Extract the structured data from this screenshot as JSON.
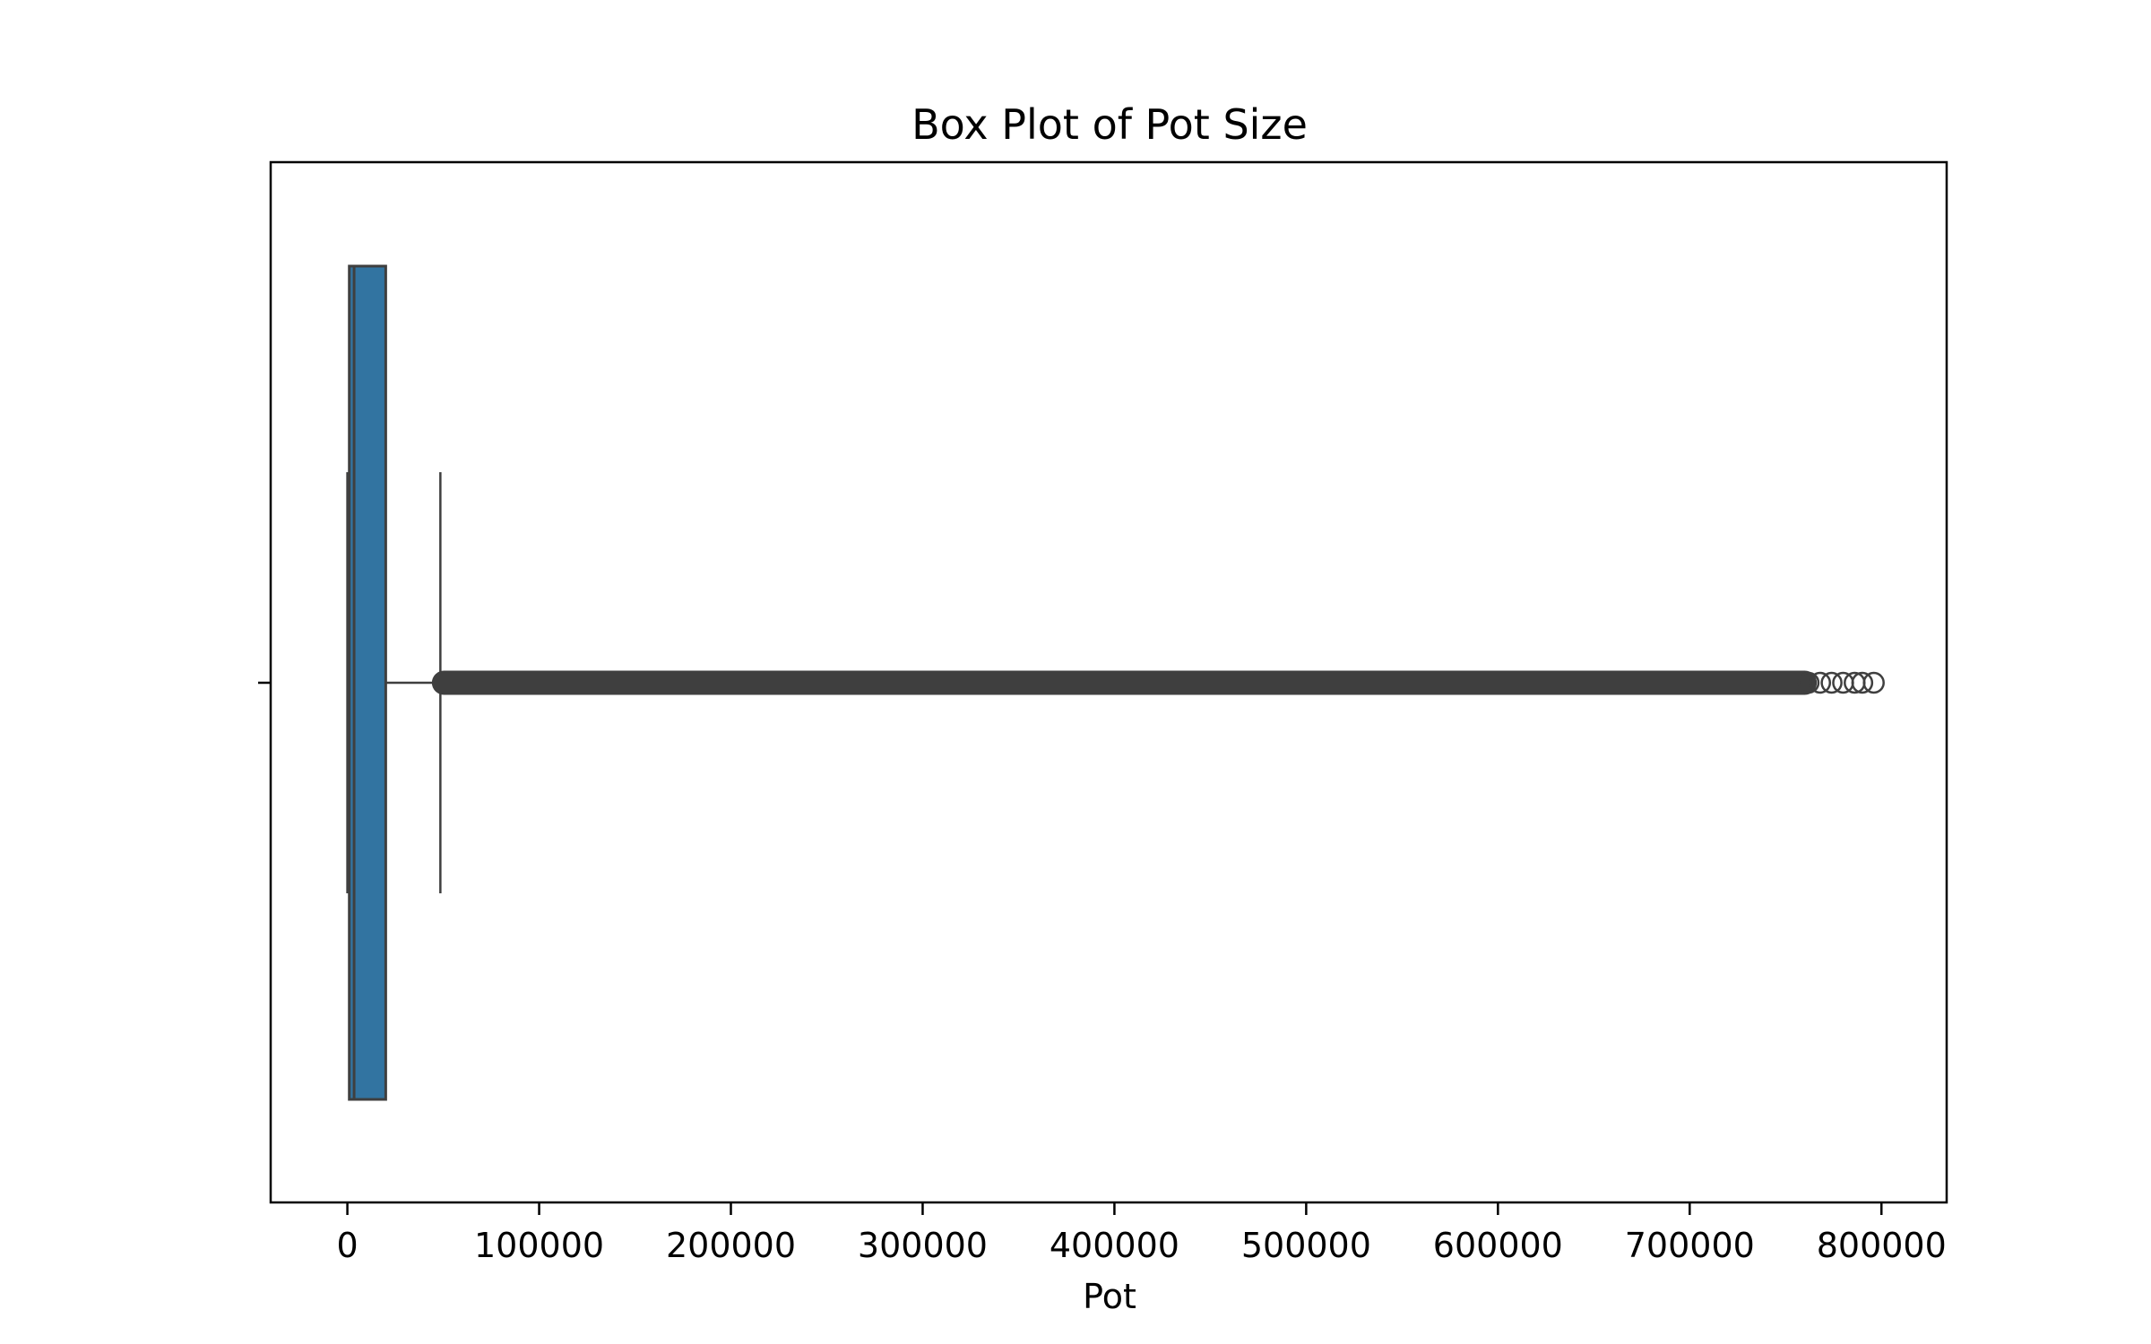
{
  "chart_data": {
    "type": "box",
    "title": "Box Plot of Pot Size",
    "xlabel": "Pot",
    "ylabel": "",
    "xlim": [
      -40000,
      834000
    ],
    "xticks": [
      0,
      100000,
      200000,
      300000,
      400000,
      500000,
      600000,
      700000,
      800000
    ],
    "xtick_labels": [
      "0",
      "100000",
      "200000",
      "300000",
      "400000",
      "500000",
      "600000",
      "700000",
      "800000"
    ],
    "grid": false,
    "legend": "none",
    "box": {
      "whisker_low": 0,
      "q1": 1000,
      "median": 3500,
      "q3": 20000,
      "whisker_high": 48500,
      "outliers_min": 48500,
      "outliers_dense_max": 760000,
      "outliers_sparse": [
        762000,
        768000,
        774000,
        780000,
        786000,
        790000,
        796000
      ]
    },
    "colors": {
      "box_fill": "#3274a1",
      "line": "#3f3f3f",
      "axes": "#000000"
    }
  }
}
